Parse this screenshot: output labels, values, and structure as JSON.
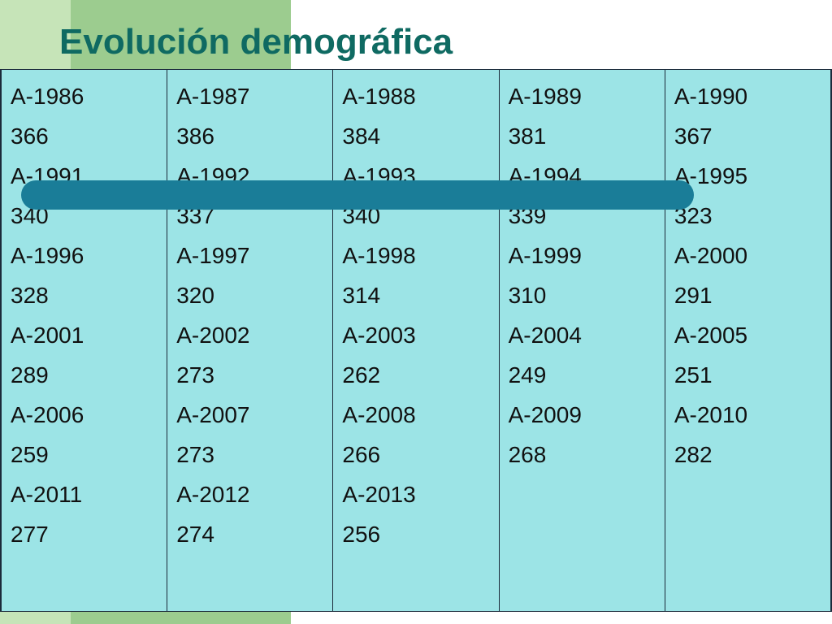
{
  "slide": {
    "title": "Evolución demográfica",
    "colors": {
      "title": "#0f6a62",
      "table_bg": "#9ce4e6",
      "bar": "#1a7d98",
      "band_dark": "#9ccc8f",
      "band_light": "#c6e4b8"
    }
  },
  "table": {
    "columns": [
      {
        "cells": [
          "A-1986",
          "366",
          "A-1991",
          "340",
          "A-1996",
          "328",
          "A-2001",
          "289",
          "A-2006",
          "259",
          "A-2011",
          "277"
        ]
      },
      {
        "cells": [
          "A-1987",
          "386",
          "A-1992",
          "337",
          "A-1997",
          "320",
          "A-2002",
          "273",
          "A-2007",
          "273",
          "A-2012",
          "274"
        ]
      },
      {
        "cells": [
          "A-1988",
          "384",
          "A-1993",
          "340",
          "A-1998",
          "314",
          "A-2003",
          "262",
          "A-2008",
          "266",
          "A-2013",
          "256"
        ]
      },
      {
        "cells": [
          "A-1989",
          "381",
          "A-1994",
          "339",
          "A-1999",
          "310",
          "A-2004",
          "249",
          "A-2009",
          "268"
        ]
      },
      {
        "cells": [
          "A-1990",
          "367",
          "A-1995",
          "323",
          "A-2000",
          "291",
          "A-2005",
          "251",
          "A-2010",
          "282"
        ]
      }
    ]
  }
}
